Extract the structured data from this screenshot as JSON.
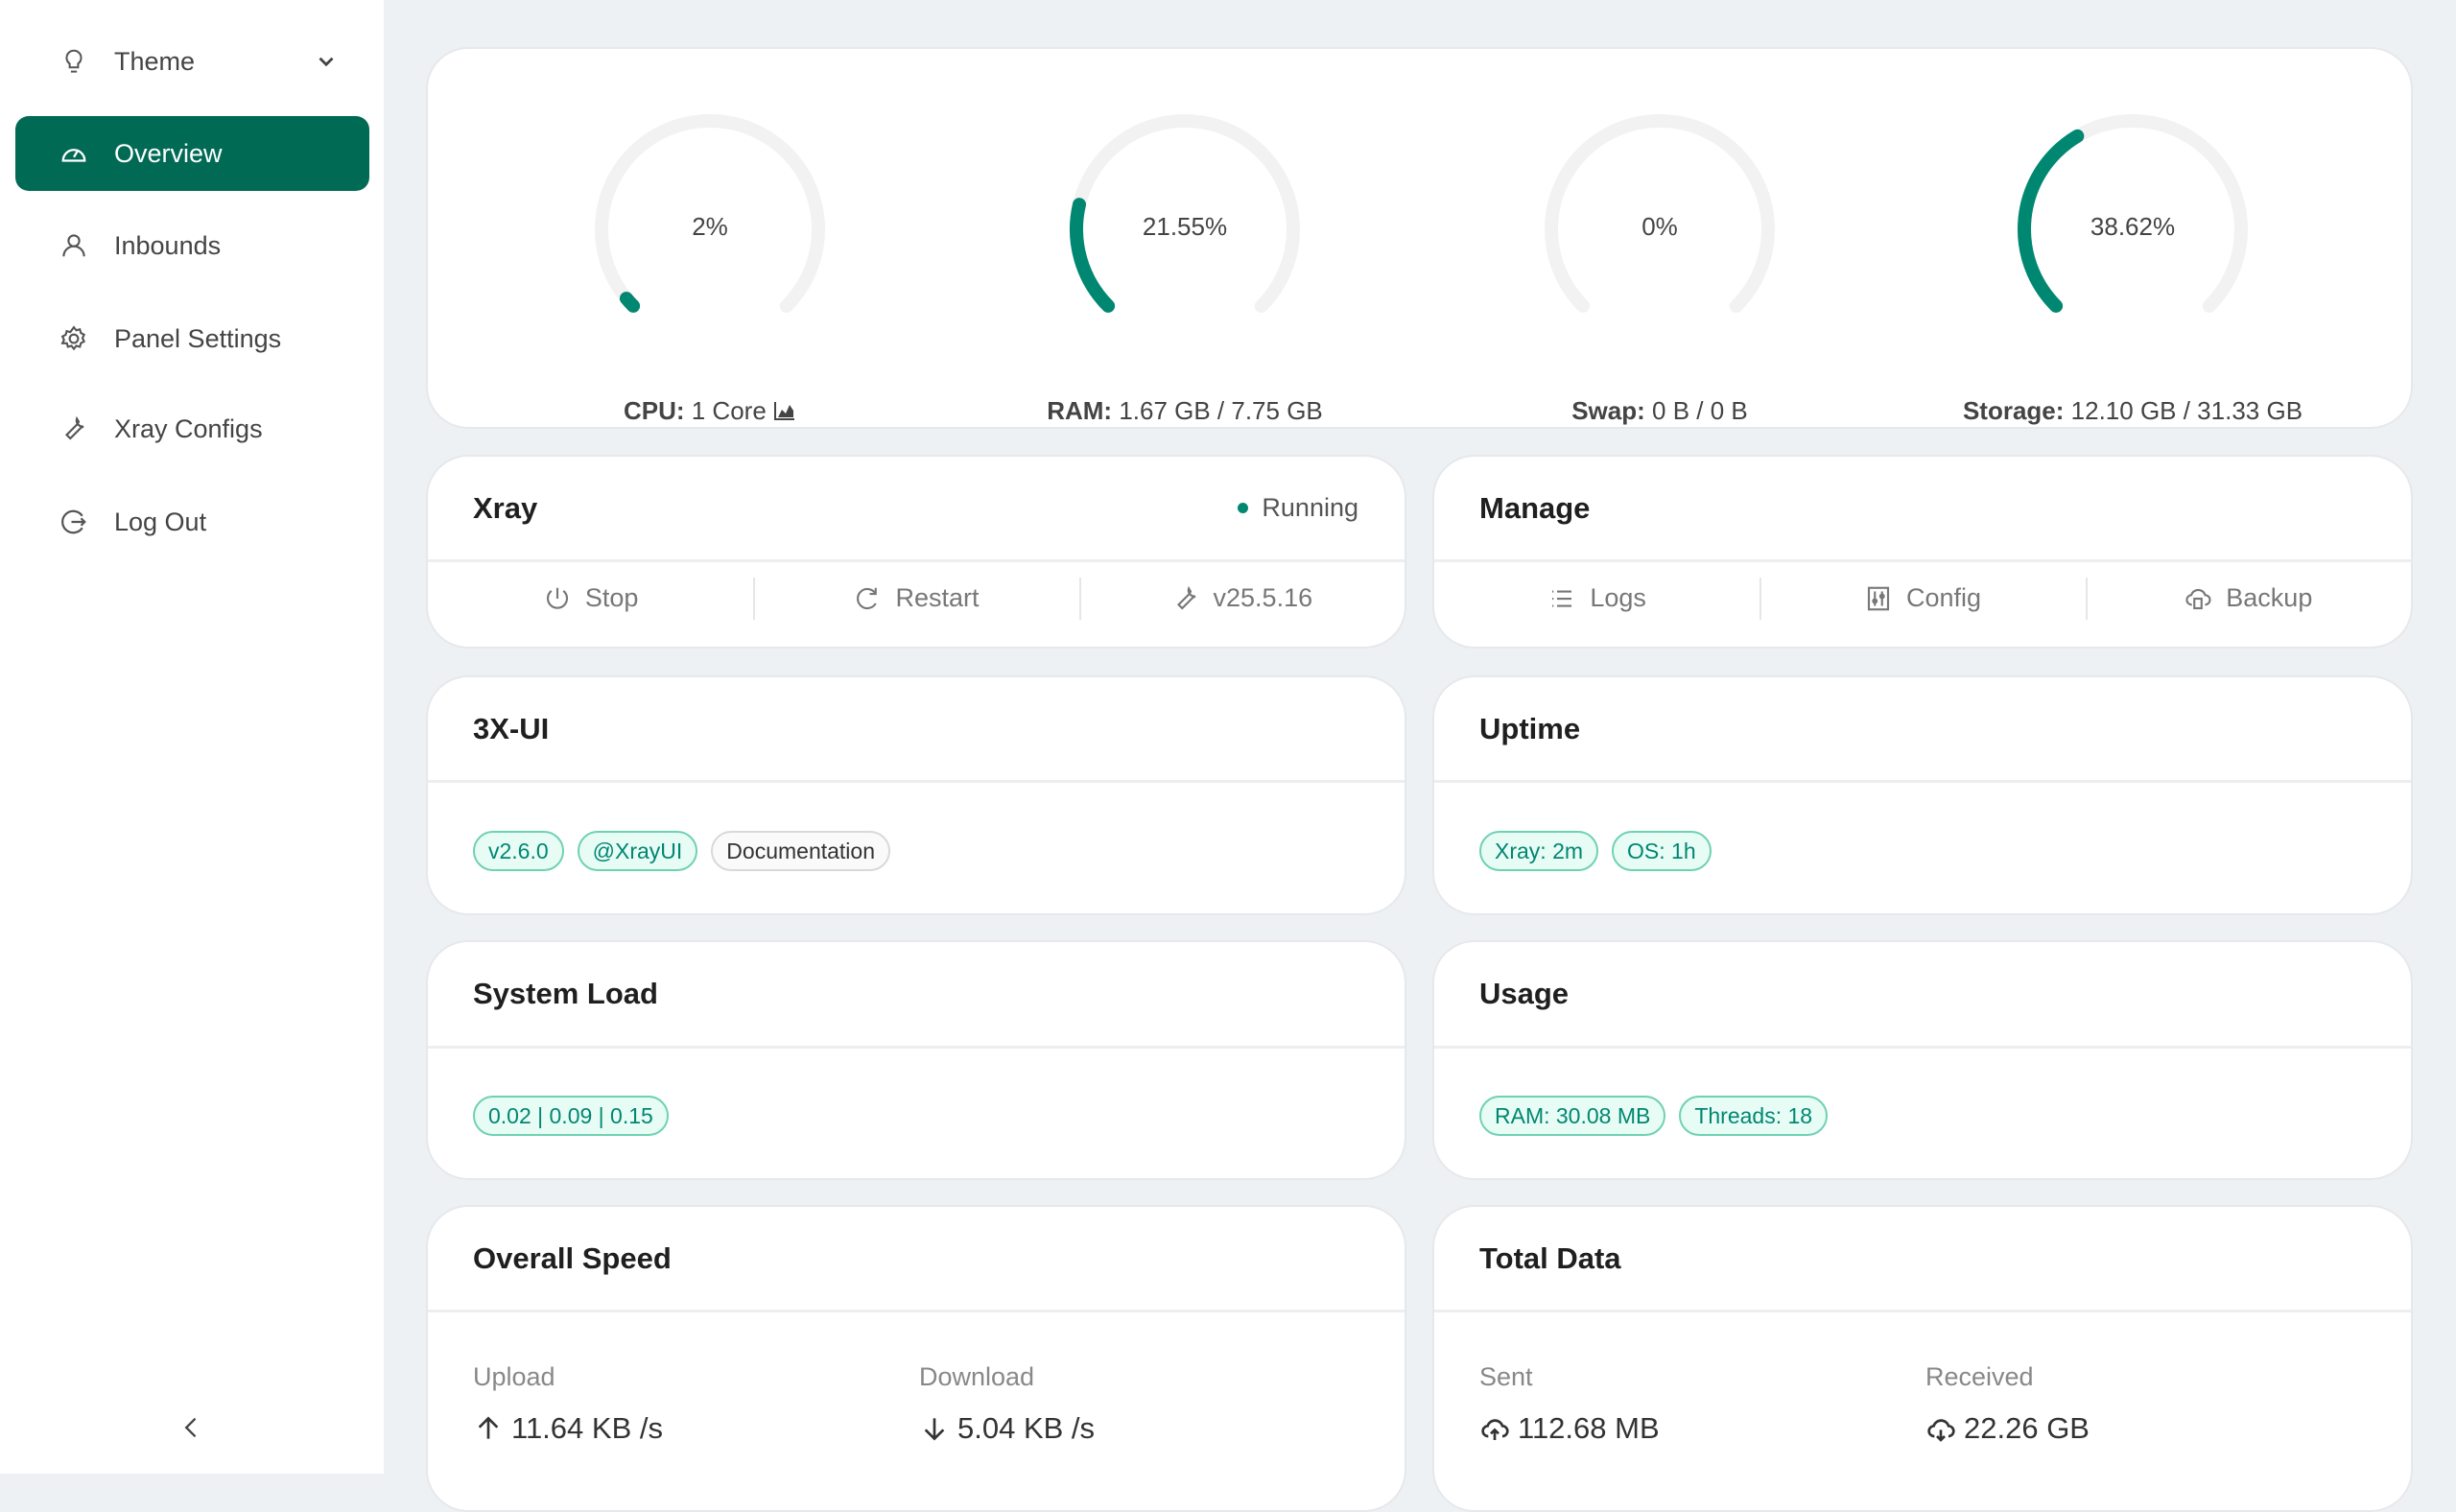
{
  "sidebar": {
    "theme": {
      "label": "Theme",
      "icon": "bulb-icon"
    },
    "items": [
      {
        "label": "Overview",
        "icon": "dashboard-icon",
        "active": true
      },
      {
        "label": "Inbounds",
        "icon": "user-icon"
      },
      {
        "label": "Panel Settings",
        "icon": "gear-icon"
      },
      {
        "label": "Xray Configs",
        "icon": "wrench-icon"
      },
      {
        "label": "Log Out",
        "icon": "logout-icon"
      }
    ]
  },
  "colors": {
    "accent": "#008771",
    "active_nav": "#006a55",
    "track": "#f2f2f2"
  },
  "gauges": [
    {
      "percent": 2,
      "percent_label": "2%",
      "key": "CPU:",
      "value": "1 Core"
    },
    {
      "percent": 21.55,
      "percent_label": "21.55%",
      "key": "RAM:",
      "value": "1.67 GB / 7.75 GB"
    },
    {
      "percent": 0,
      "percent_label": "0%",
      "key": "Swap:",
      "value": "0 B / 0 B"
    },
    {
      "percent": 38.62,
      "percent_label": "38.62%",
      "key": "Storage:",
      "value": "12.10 GB / 31.33 GB"
    }
  ],
  "xray": {
    "title": "Xray",
    "status": "Running",
    "stop": "Stop",
    "restart": "Restart",
    "version": "v25.5.16"
  },
  "manage": {
    "title": "Manage",
    "logs": "Logs",
    "config": "Config",
    "backup": "Backup"
  },
  "panel": {
    "title": "3X-UI",
    "tags": [
      "v2.6.0",
      "@XrayUI",
      "Documentation"
    ]
  },
  "uptime": {
    "title": "Uptime",
    "tags": [
      "Xray: 2m",
      "OS: 1h"
    ]
  },
  "load": {
    "title": "System Load",
    "value": "0.02 | 0.09 | 0.15"
  },
  "usage": {
    "title": "Usage",
    "tags": [
      "RAM: 30.08 MB",
      "Threads: 18"
    ]
  },
  "speed": {
    "title": "Overall Speed",
    "upload_label": "Upload",
    "upload": "11.64 KB /s",
    "download_label": "Download",
    "download": "5.04 KB /s"
  },
  "total": {
    "title": "Total Data",
    "sent_label": "Sent",
    "sent": "112.68 MB",
    "received_label": "Received",
    "received": "22.26 GB"
  }
}
